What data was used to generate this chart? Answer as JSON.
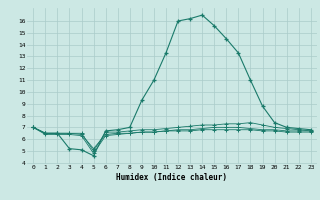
{
  "xlabel": "Humidex (Indice chaleur)",
  "x": [
    0,
    1,
    2,
    3,
    4,
    5,
    6,
    7,
    8,
    9,
    10,
    11,
    12,
    13,
    14,
    15,
    16,
    17,
    18,
    19,
    20,
    21,
    22,
    23
  ],
  "line1": [
    7.0,
    6.5,
    6.5,
    5.2,
    5.1,
    4.6,
    6.7,
    6.8,
    7.0,
    9.3,
    11.0,
    13.3,
    16.0,
    16.2,
    16.5,
    15.6,
    14.5,
    13.3,
    11.0,
    8.8,
    7.4,
    7.0,
    6.9,
    6.8
  ],
  "line2": [
    7.0,
    6.5,
    6.5,
    6.5,
    6.5,
    5.0,
    6.6,
    6.6,
    6.7,
    6.8,
    6.8,
    6.9,
    7.0,
    7.1,
    7.2,
    7.2,
    7.3,
    7.3,
    7.4,
    7.2,
    7.0,
    6.9,
    6.8,
    6.7
  ],
  "line3": [
    7.0,
    6.5,
    6.5,
    6.5,
    6.4,
    5.2,
    6.4,
    6.5,
    6.5,
    6.6,
    6.6,
    6.7,
    6.8,
    6.8,
    6.9,
    7.0,
    7.0,
    7.0,
    6.9,
    6.8,
    6.8,
    6.7,
    6.7,
    6.7
  ],
  "line4": [
    7.0,
    6.4,
    6.4,
    6.4,
    6.3,
    4.8,
    6.3,
    6.4,
    6.5,
    6.6,
    6.6,
    6.7,
    6.7,
    6.7,
    6.8,
    6.8,
    6.8,
    6.8,
    6.8,
    6.7,
    6.7,
    6.6,
    6.6,
    6.6
  ],
  "color": "#1a7a6a",
  "bg_color": "#cce8e4",
  "grid_color": "#aaccca",
  "ylim_min": 4,
  "ylim_max": 17,
  "xlim_min": 0,
  "xlim_max": 23,
  "yticks": [
    4,
    5,
    6,
    7,
    8,
    9,
    10,
    11,
    12,
    13,
    14,
    15,
    16
  ],
  "xticks": [
    0,
    1,
    2,
    3,
    4,
    5,
    6,
    7,
    8,
    9,
    10,
    11,
    12,
    13,
    14,
    15,
    16,
    17,
    18,
    19,
    20,
    21,
    22,
    23
  ]
}
